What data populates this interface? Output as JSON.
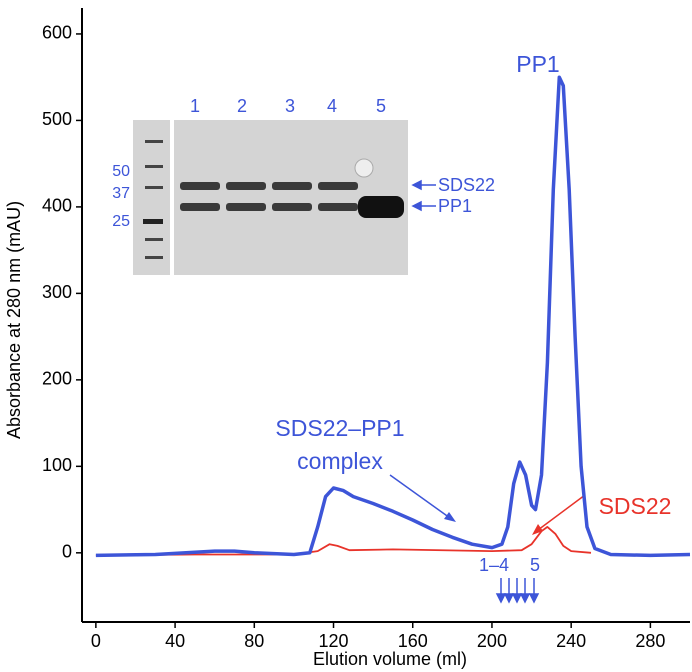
{
  "chart_data": {
    "type": "line",
    "xlabel": "Elution volume (ml)",
    "ylabel": "Absorbance at 280 nm (mAU)",
    "xlim": [
      -7,
      300
    ],
    "xticks": [
      0,
      40,
      80,
      120,
      160,
      200,
      240,
      280
    ],
    "ylim": [
      -80,
      630
    ],
    "yticks": [
      0,
      100,
      200,
      300,
      400,
      500,
      600
    ],
    "series": [
      {
        "name": "PP1",
        "color": "#3d55d8",
        "x": [
          0,
          30,
          60,
          70,
          80,
          100,
          108,
          112,
          116,
          120,
          125,
          130,
          140,
          150,
          160,
          170,
          180,
          190,
          200,
          205,
          208,
          211,
          214,
          217,
          220,
          222,
          225,
          228,
          231,
          234,
          236,
          239,
          242,
          245,
          248,
          252,
          260,
          280,
          300
        ],
        "values": [
          -3,
          -2,
          2,
          2,
          0,
          -2,
          0,
          30,
          65,
          75,
          72,
          65,
          57,
          48,
          38,
          27,
          18,
          10,
          6,
          10,
          30,
          80,
          105,
          90,
          55,
          50,
          90,
          220,
          420,
          550,
          540,
          420,
          250,
          100,
          30,
          5,
          -2,
          -3,
          -2
        ]
      },
      {
        "name": "SDS22",
        "color": "#e8332a",
        "x": [
          0,
          50,
          100,
          112,
          118,
          122,
          128,
          150,
          200,
          215,
          220,
          225,
          228,
          232,
          236,
          240,
          250
        ],
        "values": [
          -3,
          -2,
          -2,
          2,
          10,
          8,
          3,
          4,
          2,
          3,
          10,
          25,
          30,
          22,
          8,
          2,
          0
        ]
      }
    ],
    "annotations": {
      "peak": "PP1",
      "complex_1": "SDS22–PP1",
      "complex_2": "complex",
      "sds22": "SDS22",
      "fractions_1_4": "1–4",
      "fraction_5": "5"
    },
    "inset": {
      "lanes": [
        "1",
        "2",
        "3",
        "4",
        "5"
      ],
      "markers": [
        "50",
        "37",
        "25"
      ],
      "bands": [
        "SDS22",
        "PP1"
      ]
    }
  }
}
